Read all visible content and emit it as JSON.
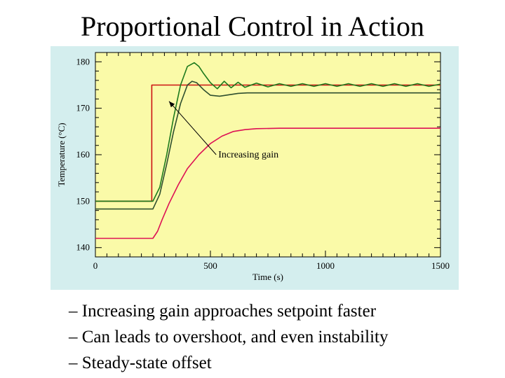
{
  "slide": {
    "title": "Proportional Control in Action",
    "bullets": [
      "– Increasing gain approaches setpoint faster",
      "– Can leads to overshoot, and even instability",
      "– Steady-state offset"
    ]
  },
  "colors": {
    "frame": "#d4eeee",
    "plot_bg": "#fafaa8",
    "axis": "#000000",
    "setpoint": "#cc1111",
    "high_gain": "#1d7a1d",
    "mid_gain": "#2f4f2f",
    "low_gain": "#dd1155"
  },
  "chart_data": {
    "type": "line",
    "title": "",
    "xlabel": "Time (s)",
    "ylabel": "Temperature (°C)",
    "xlim": [
      0,
      1500
    ],
    "ylim": [
      138,
      182
    ],
    "xticks": [
      0,
      500,
      1000,
      1500
    ],
    "yticks": [
      140,
      150,
      160,
      170,
      180
    ],
    "grid": false,
    "legend": "none",
    "annotations": [
      {
        "text": "Increasing gain",
        "points_from": [
          525,
          160
        ],
        "points_to": [
          320,
          171.5
        ]
      }
    ],
    "series": [
      {
        "role": "setpoint",
        "color": "#cc1111",
        "x": [
          0,
          245,
          245,
          1500
        ],
        "y": [
          150,
          150,
          175,
          175
        ]
      },
      {
        "role": "high-gain",
        "color": "#1d7a1d",
        "x": [
          0,
          250,
          280,
          310,
          340,
          370,
          400,
          430,
          450,
          470,
          500,
          530,
          560,
          590,
          620,
          650,
          700,
          750,
          800,
          850,
          900,
          950,
          1000,
          1050,
          1100,
          1150,
          1200,
          1250,
          1300,
          1350,
          1400,
          1450,
          1500
        ],
        "y": [
          150,
          150,
          153,
          160,
          168,
          175,
          179,
          179.8,
          179,
          177.5,
          175.5,
          174.2,
          175.8,
          174.4,
          175.6,
          174.5,
          175.4,
          174.6,
          175.3,
          174.7,
          175.3,
          174.7,
          175.3,
          174.7,
          175.3,
          174.7,
          175.3,
          174.7,
          175.3,
          174.7,
          175.3,
          174.7,
          175.2
        ]
      },
      {
        "role": "mid-gain",
        "color": "#2f4f2f",
        "x": [
          0,
          250,
          280,
          310,
          340,
          370,
          400,
          420,
          440,
          470,
          500,
          540,
          580,
          620,
          660,
          700,
          800,
          1000,
          1500
        ],
        "y": [
          148.3,
          148.3,
          151.5,
          158,
          165,
          171,
          175,
          175.8,
          175.5,
          174,
          172.8,
          172.6,
          172.9,
          173.2,
          173.3,
          173.3,
          173.3,
          173.3,
          173.3
        ]
      },
      {
        "role": "low-gain",
        "color": "#dd1155",
        "x": [
          0,
          250,
          270,
          290,
          320,
          360,
          400,
          450,
          500,
          550,
          600,
          650,
          700,
          800,
          1000,
          1500
        ],
        "y": [
          142,
          142,
          143.5,
          146,
          149.5,
          153.5,
          157,
          160,
          162.4,
          164,
          165,
          165.4,
          165.6,
          165.7,
          165.7,
          165.7
        ]
      }
    ]
  }
}
